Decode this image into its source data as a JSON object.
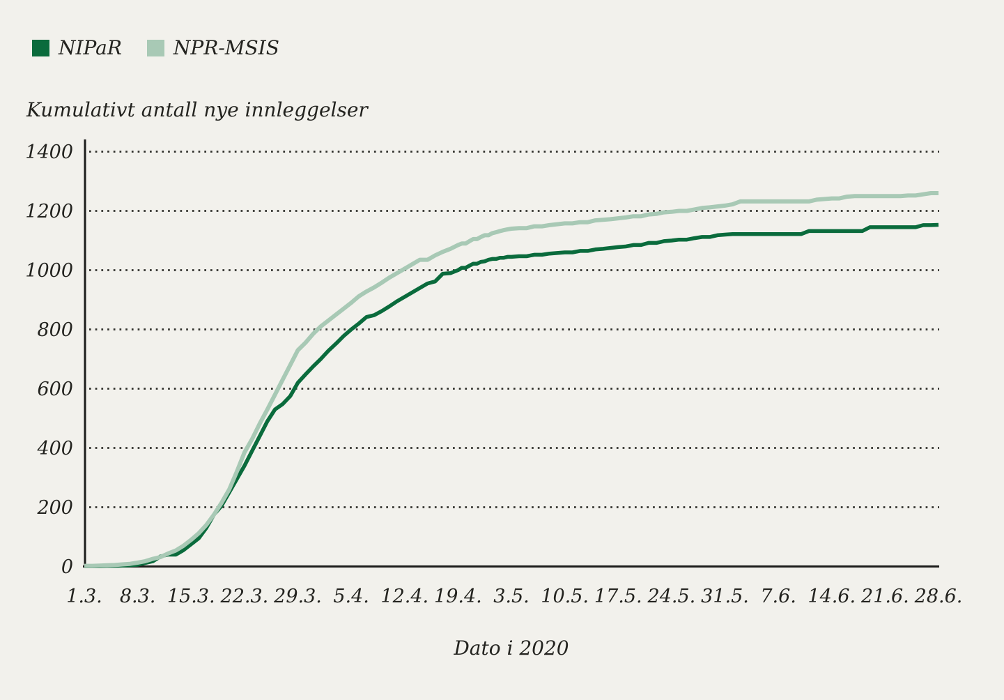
{
  "colors": {
    "background": "#f2f1ec",
    "text": "#23231f",
    "grid_dots": "#33332e",
    "axis": "#1c1c1a"
  },
  "chart_data": {
    "type": "line",
    "title": "Kumulativt antall nye innleggelser",
    "xlabel": "Dato i 2020",
    "legend_position": "top-left",
    "grid": "horizontal dotted lines at each y tick",
    "y_ticks": [
      0,
      200,
      400,
      600,
      800,
      1000,
      1200,
      1400
    ],
    "ylim": [
      0,
      1400
    ],
    "x_tick_labels": [
      "1.3.",
      "8.3.",
      "15.3.",
      "22.3.",
      "29.3.",
      "5.4.",
      "12.4.",
      "19.4.",
      "3.5.",
      "10.5.",
      "17.5.",
      "24.5.",
      "31.5.",
      "7.6.",
      "14.6.",
      "21.6.",
      "28.6."
    ],
    "days_per_tick_interval": [
      7,
      7,
      7,
      7,
      7,
      7,
      7,
      14,
      7,
      7,
      7,
      7,
      7,
      7,
      7,
      7
    ],
    "x_start": "1.3.2020",
    "x_end": "28.6.2020",
    "x_resolution": "daily",
    "series": [
      {
        "name": "NIPaR",
        "color": "#0a6b3c",
        "values": [
          1,
          1,
          1,
          2,
          2,
          3,
          4,
          6,
          12,
          18,
          34,
          40,
          40,
          55,
          75,
          95,
          130,
          175,
          205,
          250,
          295,
          340,
          390,
          440,
          490,
          530,
          548,
          575,
          620,
          648,
          675,
          700,
          728,
          752,
          778,
          800,
          820,
          842,
          848,
          862,
          878,
          895,
          910,
          925,
          940,
          955,
          962,
          988,
          990,
          1000,
          1008,
          1008,
          1015,
          1022,
          1022,
          1028,
          1030,
          1035,
          1038,
          1038,
          1042,
          1042,
          1045,
          1045,
          1047,
          1047,
          1052,
          1052,
          1056,
          1058,
          1060,
          1060,
          1065,
          1065,
          1070,
          1072,
          1075,
          1078,
          1080,
          1085,
          1085,
          1092,
          1092,
          1098,
          1100,
          1103,
          1103,
          1108,
          1112,
          1112,
          1118,
          1120,
          1122,
          1122,
          1122,
          1122,
          1122,
          1122,
          1122,
          1122,
          1122,
          1122,
          1132,
          1132,
          1132,
          1132,
          1132,
          1132,
          1132,
          1132,
          1145,
          1145,
          1145,
          1145,
          1145,
          1145,
          1145,
          1152,
          1152,
          1153
        ]
      },
      {
        "name": "NPR-MSIS",
        "color": "#a8c9b5",
        "values": [
          2,
          2,
          3,
          4,
          5,
          7,
          9,
          13,
          18,
          26,
          32,
          44,
          54,
          70,
          90,
          112,
          140,
          175,
          215,
          260,
          320,
          385,
          430,
          482,
          530,
          580,
          630,
          680,
          730,
          755,
          785,
          810,
          830,
          850,
          870,
          890,
          912,
          928,
          942,
          958,
          975,
          990,
          1005,
          1020,
          1035,
          1035,
          1050,
          1062,
          1072,
          1085,
          1090,
          1090,
          1098,
          1105,
          1105,
          1112,
          1118,
          1118,
          1125,
          1128,
          1132,
          1135,
          1138,
          1140,
          1142,
          1142,
          1148,
          1148,
          1152,
          1155,
          1158,
          1158,
          1162,
          1162,
          1168,
          1170,
          1172,
          1175,
          1178,
          1182,
          1182,
          1188,
          1190,
          1195,
          1197,
          1200,
          1200,
          1205,
          1210,
          1212,
          1215,
          1218,
          1222,
          1232,
          1232,
          1232,
          1232,
          1232,
          1232,
          1232,
          1232,
          1232,
          1232,
          1238,
          1240,
          1242,
          1242,
          1248,
          1250,
          1250,
          1250,
          1250,
          1250,
          1250,
          1250,
          1252,
          1252,
          1256,
          1260,
          1260
        ]
      }
    ]
  }
}
